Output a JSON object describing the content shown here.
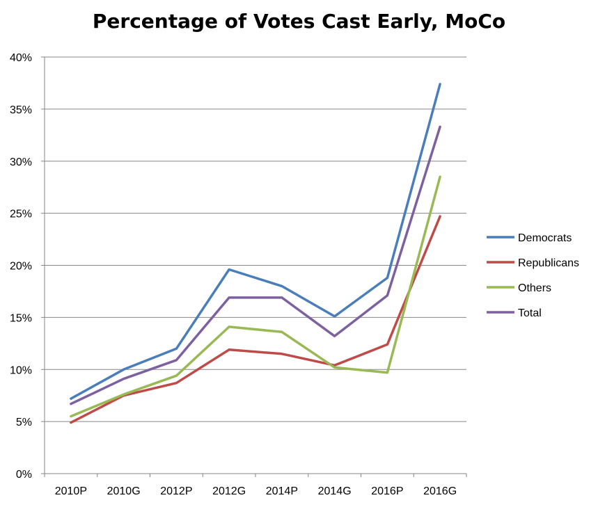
{
  "chart_data": {
    "type": "line",
    "title": "Percentage of Votes Cast Early, MoCo",
    "xlabel": "",
    "ylabel": "",
    "categories": [
      "2010P",
      "2010G",
      "2012P",
      "2012G",
      "2014P",
      "2014G",
      "2016P",
      "2016G"
    ],
    "ylim": [
      0,
      40
    ],
    "yticks": [
      "0%",
      "5%",
      "10%",
      "15%",
      "20%",
      "25%",
      "30%",
      "35%",
      "40%"
    ],
    "ytick_values": [
      0,
      5,
      10,
      15,
      20,
      25,
      30,
      35,
      40
    ],
    "grid": "horizontal",
    "legend_position": "right",
    "series": [
      {
        "name": "Democrats",
        "color": "#4a7ebb",
        "values": [
          7.2,
          10.0,
          12.0,
          19.6,
          18.0,
          15.1,
          18.8,
          37.4
        ]
      },
      {
        "name": "Republicans",
        "color": "#be4b48",
        "values": [
          4.9,
          7.5,
          8.7,
          11.9,
          11.5,
          10.4,
          12.4,
          24.7
        ]
      },
      {
        "name": "Others",
        "color": "#98b954",
        "values": [
          5.5,
          7.6,
          9.4,
          14.1,
          13.6,
          10.2,
          9.7,
          28.5
        ]
      },
      {
        "name": "Total",
        "color": "#7d60a0",
        "values": [
          6.7,
          9.1,
          10.9,
          16.9,
          16.9,
          13.2,
          17.1,
          33.3
        ]
      }
    ]
  }
}
